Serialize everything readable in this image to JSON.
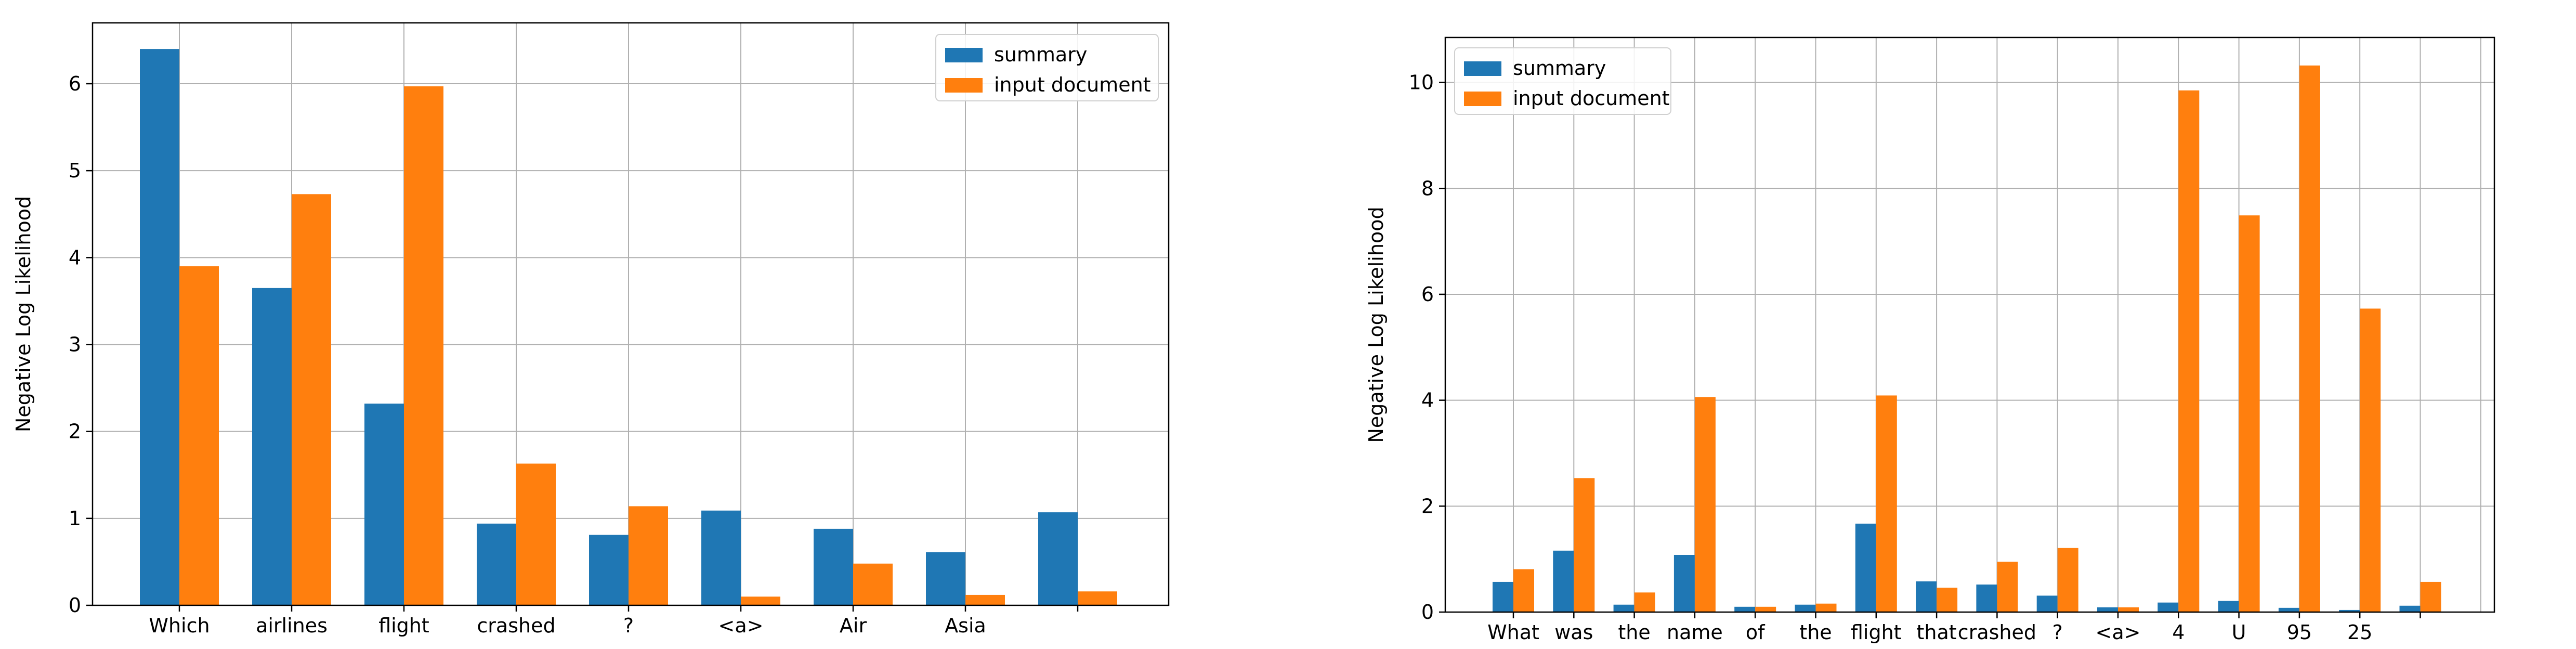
{
  "colors": {
    "summary": "#1f77b4",
    "input_document": "#ff7f0e",
    "grid": "#b0b0b0"
  },
  "chart_data": [
    {
      "type": "bar",
      "title": "",
      "xlabel": "",
      "ylabel": "Negative Log Likelihood",
      "ylim": [
        0,
        6.7
      ],
      "yticks": [
        0,
        1,
        2,
        3,
        4,
        5,
        6
      ],
      "grid": true,
      "legend_position": "top-right",
      "categories": [
        "Which",
        "airlines",
        "flight",
        "crashed",
        "?",
        "<a>",
        "Air",
        "Asia",
        ""
      ],
      "series": [
        {
          "name": "summary",
          "values": [
            6.4,
            3.65,
            2.32,
            0.94,
            0.81,
            1.09,
            0.88,
            0.61,
            1.07
          ]
        },
        {
          "name": "input document",
          "values": [
            3.9,
            4.73,
            5.97,
            1.63,
            1.14,
            0.1,
            0.48,
            0.12,
            0.16
          ]
        }
      ]
    },
    {
      "type": "bar",
      "title": "",
      "xlabel": "",
      "ylabel": "Negative Log Likelihood",
      "ylim": [
        0,
        10.85
      ],
      "yticks": [
        0,
        2,
        4,
        6,
        8,
        10
      ],
      "grid": true,
      "legend_position": "top-left",
      "categories": [
        "What",
        "was",
        "the",
        "name",
        "of",
        "the",
        "flight",
        "that",
        "crashed",
        "?",
        "<a>",
        "4",
        "U",
        "95",
        "25",
        ""
      ],
      "series": [
        {
          "name": "summary",
          "values": [
            0.57,
            1.16,
            0.14,
            1.08,
            0.1,
            0.14,
            1.67,
            0.58,
            0.52,
            0.31,
            0.09,
            0.18,
            0.21,
            0.08,
            0.04,
            0.12
          ]
        },
        {
          "name": "input document",
          "values": [
            0.81,
            2.53,
            0.37,
            4.06,
            0.1,
            0.16,
            4.09,
            0.46,
            0.95,
            1.21,
            0.09,
            9.85,
            7.49,
            10.32,
            5.73,
            0.57
          ]
        }
      ]
    }
  ]
}
